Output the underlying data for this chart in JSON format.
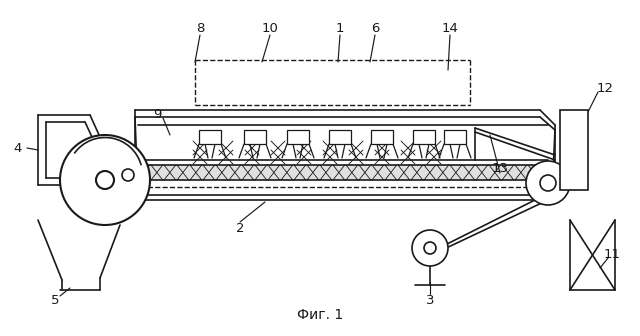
{
  "bg_color": "#ffffff",
  "line_color": "#1a1a1a",
  "fig_caption": "Фиг. 1",
  "lw": 1.2
}
